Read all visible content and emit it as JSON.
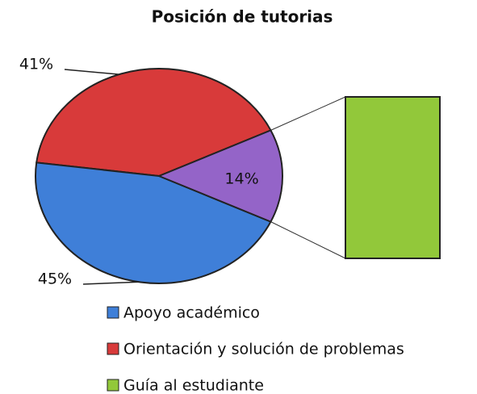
{
  "chart_data": {
    "type": "bar_of_pie",
    "title": "Posición de tutorias",
    "categories": [
      "Apoyo académico",
      "Orientación y solución de problemas",
      "Guía al estudiante"
    ],
    "values": [
      45,
      41,
      14
    ],
    "value_labels": [
      "45%",
      "41%",
      "14%"
    ],
    "colors": [
      "#3f7fd8",
      "#d83a3a",
      "#92c83a"
    ],
    "split_color": "#9464c8",
    "legend": "bottom"
  }
}
